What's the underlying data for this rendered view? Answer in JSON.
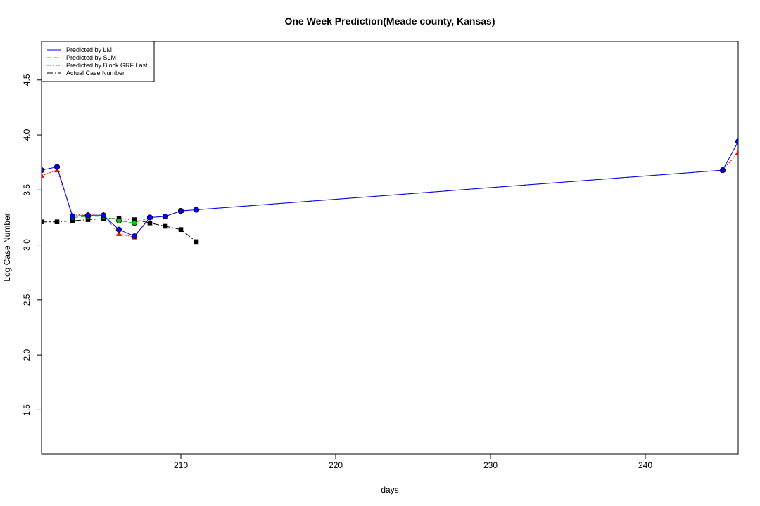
{
  "chart_data": {
    "type": "line",
    "title": "One Week Prediction(Meade county, Kansas)",
    "xlabel": "days",
    "ylabel": "Log Case Number",
    "xlim": [
      201,
      246
    ],
    "ylim": [
      1.1,
      4.85
    ],
    "xticks": [
      210,
      220,
      230,
      240
    ],
    "yticks": [
      1.5,
      2.0,
      2.5,
      3.0,
      3.5,
      4.0,
      4.5
    ],
    "ytick_labels": [
      "1.5",
      "2.0",
      "2.5",
      "3.0",
      "3.5",
      "4.0",
      "4.5"
    ],
    "grid": false,
    "legend_position": "top-left",
    "series": [
      {
        "name": "Predicted by LM",
        "color": "#0000ff",
        "dash": "",
        "marker": "circle",
        "x": [
          201,
          202,
          203,
          204,
          205,
          206,
          207,
          208,
          209,
          210,
          211,
          245,
          246
        ],
        "y": [
          3.68,
          3.71,
          3.26,
          3.27,
          3.27,
          3.14,
          3.08,
          3.25,
          3.26,
          3.31,
          3.32,
          3.68,
          3.94
        ]
      },
      {
        "name": "Predicted by SLM",
        "color": "#00cc00",
        "dash": "6,4",
        "marker": "circle",
        "x": [
          201,
          202,
          203,
          204,
          205,
          206,
          207,
          208,
          209,
          210,
          211,
          245,
          246
        ],
        "y": [
          3.68,
          3.71,
          3.25,
          3.26,
          3.26,
          3.22,
          3.2,
          3.25,
          3.26,
          3.31,
          3.32,
          3.68,
          3.94
        ]
      },
      {
        "name": "Predicted by Block GRF Last",
        "color": "#ff0000",
        "dash": "2,2",
        "marker": "triangle",
        "x": [
          201,
          202,
          203,
          204,
          205,
          206,
          207,
          208,
          209,
          210,
          211,
          245,
          246
        ],
        "y": [
          3.63,
          3.68,
          3.27,
          3.28,
          3.28,
          3.1,
          3.07,
          3.25,
          3.26,
          3.31,
          3.32,
          3.68,
          3.84
        ]
      },
      {
        "name": "Actual Case Number",
        "color": "#000000",
        "dash": "8,3,2,3",
        "marker": "square",
        "x": [
          201,
          202,
          203,
          204,
          205,
          206,
          207,
          208,
          209,
          210,
          211
        ],
        "y": [
          3.21,
          3.21,
          3.22,
          3.23,
          3.24,
          3.24,
          3.23,
          3.2,
          3.17,
          3.14,
          3.03
        ]
      }
    ]
  }
}
